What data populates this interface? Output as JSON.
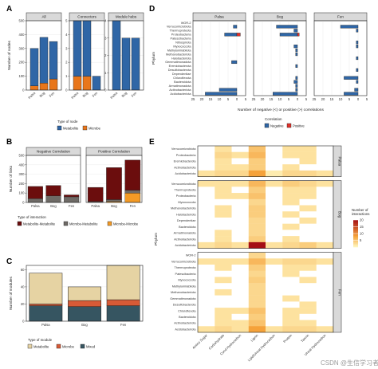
{
  "panel_letters": [
    "A",
    "B",
    "C",
    "D",
    "E"
  ],
  "chart_data": [
    {
      "id": "A",
      "type": "bar",
      "facets": [
        "All",
        "Connectors",
        "Module hubs"
      ],
      "ylabel": "Number of nodes",
      "categories": [
        "Palsa",
        "Bog",
        "Fen"
      ],
      "series": [
        {
          "name": "Metabolite",
          "values": [
            [
              270,
              330,
              270
            ],
            [
              4,
              4,
              1
            ],
            [
              4,
              3,
              3
            ]
          ]
        },
        {
          "name": "Microbe",
          "values": [
            [
              30,
              50,
              80
            ],
            [
              1,
              1,
              0
            ],
            [
              0,
              0,
              0
            ]
          ]
        }
      ],
      "ylim": [
        [
          0,
          500
        ],
        [
          0,
          5
        ],
        [
          0,
          4
        ]
      ],
      "yticks": [
        [
          0,
          100,
          200,
          300,
          400,
          500
        ],
        [
          0,
          1,
          2,
          3,
          4,
          5
        ],
        [
          0,
          1,
          2,
          3,
          4
        ]
      ],
      "legend_title": "Type of node",
      "legend_items": [
        "Metabolite",
        "Microbe"
      ],
      "colors": {
        "Metabolite": "#2f66a6",
        "Microbe": "#e8761b"
      }
    },
    {
      "id": "B",
      "type": "bar",
      "facets": [
        "Negative Correlation",
        "Positive Correlation"
      ],
      "ylabel": "Number of links",
      "categories": [
        "Palsa",
        "Bog",
        "Fen"
      ],
      "series": [
        {
          "name": "Metabolite-Metabolite",
          "values": [
            [
              130,
              110,
              20
            ],
            [
              150,
              340,
              320
            ]
          ]
        },
        {
          "name": "Microbe-Metabolite",
          "values": [
            [
              40,
              70,
              60
            ],
            [
              10,
              20,
              30
            ]
          ]
        },
        {
          "name": "Microbe-Microbe",
          "values": [
            [
              0,
              0,
              0
            ],
            [
              0,
              10,
              100
            ]
          ]
        }
      ],
      "ylim": [
        0,
        500
      ],
      "yticks": [
        0,
        100,
        200,
        300,
        400,
        500
      ],
      "legend_title": "Type of interaction",
      "legend_items": [
        "Metabolite-Metabolite",
        "Microbe-Metabolite",
        "Microbe-Microbe"
      ],
      "colors": {
        "Metabolite-Metabolite": "#6b0d0d",
        "Microbe-Metabolite": "#6e6a66",
        "Microbe-Microbe": "#f39a25"
      }
    },
    {
      "id": "C",
      "type": "bar",
      "ylabel": "Number of modules",
      "categories": [
        "Palsa",
        "Bog",
        "Fen"
      ],
      "series": [
        {
          "name": "Mixed",
          "values": [
            18,
            17,
            18
          ]
        },
        {
          "name": "Microbe",
          "values": [
            2,
            7,
            7
          ]
        },
        {
          "name": "Metabolite",
          "values": [
            36,
            16,
            40
          ]
        }
      ],
      "ylim": [
        0,
        65
      ],
      "yticks": [
        0,
        20,
        40,
        60
      ],
      "legend_title": "Type of module",
      "legend_items": [
        "Metabolite",
        "Microbe",
        "Mixed"
      ],
      "colors": {
        "Metabolite": "#e6d3a3",
        "Microbe": "#d75a36",
        "Mixed": "#365561"
      }
    },
    {
      "id": "D",
      "type": "bar",
      "orientation": "horizontal",
      "facets": [
        "Palsa",
        "Bog",
        "Fen"
      ],
      "ylabel": "Phylum",
      "xlabel": "Number of negative (<) or positive (>) correlations",
      "categories": [
        "WOR-2",
        "Verrucomicrobiota",
        "Thermoproteota",
        "Proteobacteria",
        "Patescibacteria",
        "Nitrospirota",
        "Myxococcota",
        "Methylomirabilota",
        "Methanobacteriota",
        "Halobacteriota",
        "Gemmatimonadota",
        "Eremiobacterota",
        "Desulfobacterota",
        "Dependentiae",
        "Chloroflexota",
        "Bacteroidota",
        "Armatimonadota",
        "Actinobacteriota",
        "Acidobacteriota"
      ],
      "series": [
        {
          "name": "Negative",
          "values": [
            [
              0,
              0,
              0
            ],
            [
              -2,
              -12,
              -10
            ],
            [
              0,
              -2,
              -1
            ],
            [
              -7,
              -10,
              0
            ],
            [
              0,
              0,
              0
            ],
            [
              0,
              0,
              -1
            ],
            [
              0,
              -2,
              -1
            ],
            [
              0,
              -1,
              0
            ],
            [
              0,
              -1,
              0
            ],
            [
              0,
              0,
              -1
            ],
            [
              -3,
              0,
              0
            ],
            [
              0,
              -1,
              0
            ],
            [
              0,
              0,
              -1
            ],
            [
              0,
              0,
              0
            ],
            [
              0,
              -1,
              -8
            ],
            [
              0,
              -2,
              -1
            ],
            [
              0,
              -1,
              0
            ],
            [
              -10,
              -1,
              -2
            ],
            [
              -18,
              -14,
              -8
            ]
          ]
        },
        {
          "name": "Positive",
          "values": [
            [
              0,
              0,
              0
            ],
            [
              0,
              0,
              0
            ],
            [
              0,
              0,
              0
            ],
            [
              2,
              1,
              0
            ],
            [
              0,
              0,
              0
            ],
            [
              0,
              0,
              0
            ],
            [
              0,
              0,
              0
            ],
            [
              0,
              0,
              0
            ],
            [
              0,
              0,
              0
            ],
            [
              0,
              0,
              0
            ],
            [
              0,
              0,
              0
            ],
            [
              0,
              0,
              0
            ],
            [
              0,
              0,
              0
            ],
            [
              0,
              0,
              0
            ],
            [
              0,
              0,
              0
            ],
            [
              0,
              0,
              0
            ],
            [
              0,
              0,
              0
            ],
            [
              0,
              0,
              0
            ],
            [
              0,
              0,
              0
            ]
          ]
        }
      ],
      "xlim": [
        -25,
        5
      ],
      "xticks": [
        -25,
        -20,
        -15,
        -10,
        -5,
        0,
        5
      ],
      "xtick_labels": [
        "25",
        "20",
        "15",
        "10",
        "5",
        "0",
        "5"
      ],
      "legend_title": "Correlation",
      "legend_items": [
        "Negative",
        "Positive"
      ],
      "colors": {
        "Negative": "#2f66a6",
        "Positive": "#e0312a"
      }
    },
    {
      "id": "E",
      "type": "heatmap",
      "ylabel": "Phylum",
      "x": [
        "Amino Sugar",
        "Carbohydrate",
        "Cond Hydrocarbon",
        "Lignin",
        "Lipid/Unsat Hydrocarbon",
        "Protein",
        "Tannin",
        "Unsat Hydrocarbon"
      ],
      "facets": [
        "Palsa",
        "Bog",
        "Fen"
      ],
      "rows": [
        [
          "Verrucomicrobiota",
          "Proteobacteria",
          "Eremiobacterota",
          "Actinobacteriota",
          "Acidobacteriota"
        ],
        [
          "Verrucomicrobiota",
          "Thermoproteota",
          "Proteobacteria",
          "Myxococcota",
          "Methanobacteriota",
          "Halobacteriota",
          "Dependentiae",
          "Bacteroidota",
          "Armatimonadota",
          "Actinobacteriota",
          "Acidobacteriota"
        ],
        [
          "WOR-2",
          "Verrucomicrobiota",
          "Thermoproteota",
          "Patescibacteria",
          "Myxococcota",
          "Methylomirabilota",
          "Methanobacteriota",
          "Gemmatimonadota",
          "Desulfobacterota",
          "Chloroflexota",
          "Bacteroidota",
          "Actinobacteriota",
          "Acidobacteriota"
        ]
      ],
      "values": [
        [
          [
            0,
            2,
            0,
            5,
            0,
            2,
            2,
            0
          ],
          [
            0,
            3,
            2,
            6,
            0,
            2,
            2,
            0
          ],
          [
            0,
            2,
            0,
            4,
            0,
            0,
            2,
            0
          ],
          [
            0,
            2,
            2,
            4,
            0,
            2,
            0,
            0
          ],
          [
            2,
            3,
            3,
            8,
            1,
            3,
            3,
            2
          ]
        ],
        [
          [
            2,
            2,
            2,
            6,
            2,
            4,
            3,
            2
          ],
          [
            0,
            2,
            0,
            4,
            0,
            2,
            2,
            0
          ],
          [
            0,
            2,
            2,
            5,
            0,
            2,
            2,
            0
          ],
          [
            0,
            0,
            0,
            3,
            0,
            2,
            0,
            0
          ],
          [
            0,
            2,
            0,
            4,
            0,
            0,
            2,
            0
          ],
          [
            0,
            2,
            0,
            4,
            0,
            2,
            0,
            0
          ],
          [
            0,
            0,
            0,
            3,
            0,
            0,
            2,
            0
          ],
          [
            0,
            0,
            0,
            3,
            0,
            2,
            0,
            0
          ],
          [
            0,
            2,
            0,
            3,
            0,
            0,
            0,
            0
          ],
          [
            0,
            2,
            0,
            4,
            0,
            2,
            0,
            0
          ],
          [
            2,
            3,
            2,
            20,
            2,
            3,
            4,
            2
          ]
        ],
        [
          [
            0,
            0,
            0,
            3,
            0,
            0,
            0,
            0
          ],
          [
            2,
            2,
            2,
            6,
            2,
            3,
            3,
            2
          ],
          [
            0,
            2,
            0,
            4,
            0,
            2,
            2,
            0
          ],
          [
            0,
            0,
            0,
            3,
            0,
            2,
            0,
            0
          ],
          [
            0,
            2,
            0,
            4,
            0,
            0,
            2,
            0
          ],
          [
            0,
            0,
            0,
            3,
            0,
            0,
            0,
            0
          ],
          [
            0,
            2,
            0,
            3,
            0,
            0,
            0,
            0
          ],
          [
            0,
            0,
            0,
            3,
            0,
            2,
            0,
            0
          ],
          [
            0,
            0,
            0,
            3,
            0,
            0,
            2,
            0
          ],
          [
            0,
            2,
            2,
            5,
            0,
            2,
            2,
            0
          ],
          [
            0,
            2,
            0,
            4,
            0,
            2,
            0,
            0
          ],
          [
            0,
            2,
            2,
            5,
            0,
            2,
            2,
            0
          ],
          [
            2,
            3,
            2,
            8,
            2,
            3,
            3,
            2
          ]
        ]
      ],
      "colorbar_title": "Number of\ninteractions",
      "colorbar_ticks": [
        20,
        15,
        10,
        5
      ],
      "color_range": [
        0,
        20
      ],
      "colors": {
        "low": "#fff7c0",
        "mid": "#f5a23a",
        "high": "#a50f15",
        "missing": "#ffffff"
      }
    }
  ],
  "watermark": "CSDN @生信学习者1"
}
